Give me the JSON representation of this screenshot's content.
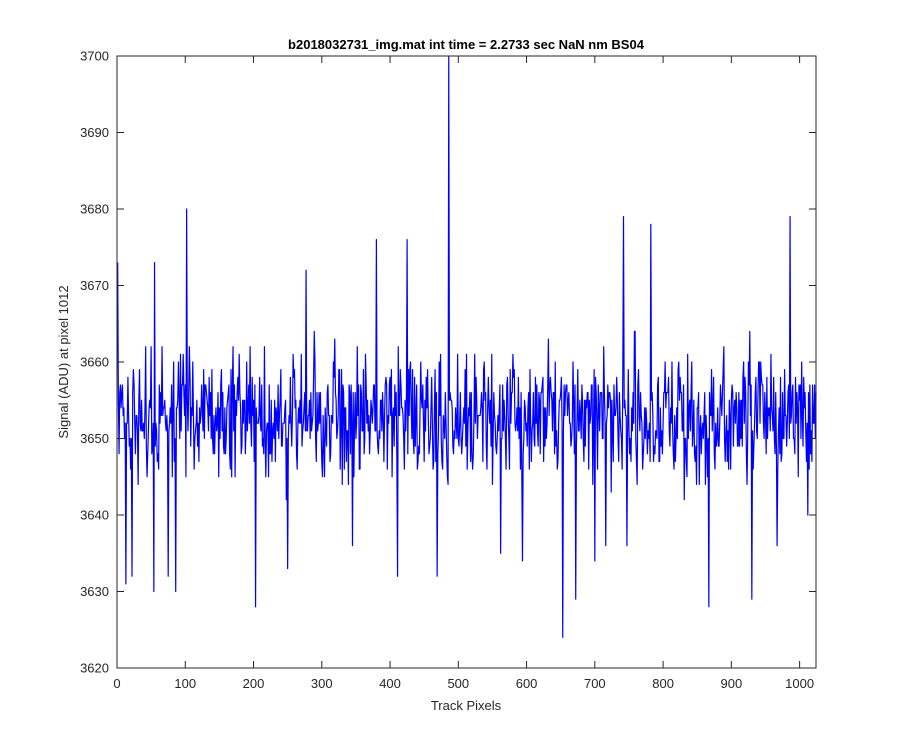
{
  "chart_data": {
    "type": "line",
    "title": "b2018032731_img.mat int time = 2.2733 sec  NaN nm BS04",
    "xlabel": "Track Pixels",
    "ylabel": "Signal (ADU) at pixel 1012",
    "xlim": [
      0,
      1024
    ],
    "ylim": [
      3620,
      3700
    ],
    "xticks": [
      0,
      100,
      200,
      300,
      400,
      500,
      600,
      700,
      800,
      900,
      1000
    ],
    "yticks": [
      3620,
      3630,
      3640,
      3650,
      3660,
      3670,
      3680,
      3690,
      3700
    ],
    "grid": false,
    "series": [
      {
        "color": "#0000ff",
        "x_start": 1,
        "x_step": 1,
        "baseline": 3653,
        "noise_range": [
          3641,
          3665
        ],
        "peaks": [
          {
            "x": 1,
            "y": 3673
          },
          {
            "x": 13,
            "y": 3631
          },
          {
            "x": 22,
            "y": 3632
          },
          {
            "x": 45,
            "y": 3648
          },
          {
            "x": 54,
            "y": 3630
          },
          {
            "x": 55,
            "y": 3673
          },
          {
            "x": 75,
            "y": 3632
          },
          {
            "x": 86,
            "y": 3630
          },
          {
            "x": 102,
            "y": 3680
          },
          {
            "x": 203,
            "y": 3628
          },
          {
            "x": 250,
            "y": 3633
          },
          {
            "x": 277,
            "y": 3672
          },
          {
            "x": 345,
            "y": 3636
          },
          {
            "x": 380,
            "y": 3676
          },
          {
            "x": 411,
            "y": 3632
          },
          {
            "x": 425,
            "y": 3676
          },
          {
            "x": 469,
            "y": 3632
          },
          {
            "x": 486,
            "y": 3700
          },
          {
            "x": 562,
            "y": 3635
          },
          {
            "x": 594,
            "y": 3634
          },
          {
            "x": 653,
            "y": 3624
          },
          {
            "x": 672,
            "y": 3629
          },
          {
            "x": 700,
            "y": 3634
          },
          {
            "x": 716,
            "y": 3636
          },
          {
            "x": 742,
            "y": 3679
          },
          {
            "x": 747,
            "y": 3636
          },
          {
            "x": 782,
            "y": 3678
          },
          {
            "x": 867,
            "y": 3628
          },
          {
            "x": 930,
            "y": 3629
          },
          {
            "x": 967,
            "y": 3636
          },
          {
            "x": 986,
            "y": 3679
          },
          {
            "x": 1012,
            "y": 3640
          }
        ]
      }
    ]
  }
}
